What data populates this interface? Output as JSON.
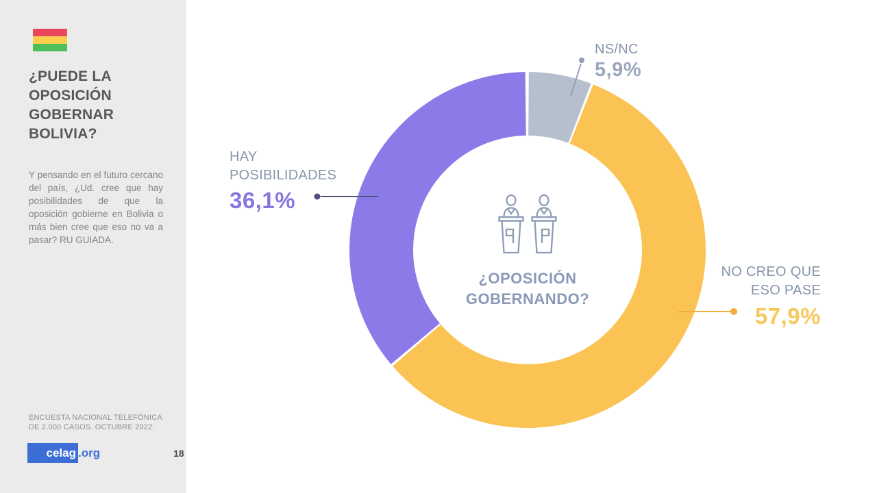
{
  "sidebar": {
    "flag": {
      "name": "bolivia-flag",
      "stripe_colors": [
        "#E8475C",
        "#FBCE4E",
        "#4FBF5C"
      ]
    },
    "title": "¿PUEDE LA OPOSICIÓN GOBERNAR BOLIVIA?",
    "description": "Y pensando en el futuro cercano del país, ¿Ud. cree que hay posibilidades de que la oposición gobierne en Bolivia o más bien cree que eso no va a pasar? RU GUIADA.",
    "source_note": "ENCUESTA NACIONAL TELEFÓNICA DE 2.000 CASOS. OCTUBRE 2022.",
    "logo": {
      "primary": "celag",
      "suffix": ".org",
      "brand_color": "#3C6ED5"
    },
    "page_number": "18"
  },
  "chart_data": {
    "type": "pie",
    "subtype": "donut",
    "center_label": "¿OPOSICIÓN GOBERNANDO?",
    "center_icon": "debate-podiums-icon",
    "start_angle_deg": 0,
    "direction": "clockwise",
    "segments": [
      {
        "id": "ns-nc",
        "label": "NS/NC",
        "value": 5.9,
        "display_value": "5,9%",
        "color": "#B6BFCD",
        "value_color": "#9AA7BC",
        "leader_color": "#93A0B5"
      },
      {
        "id": "no-creo-que-eso-pase",
        "label": "NO CREO QUE ESO PASE",
        "value": 57.9,
        "display_value": "57,9%",
        "color": "#FBC353",
        "value_color": "#F8C85D",
        "leader_color": "#F2AC3F"
      },
      {
        "id": "hay-posibilidades",
        "label": "HAY POSIBILIDADES",
        "value": 36.1,
        "display_value": "36,1%",
        "color": "#8A7BE8",
        "value_color": "#8478DE",
        "leader_color": "#50507E"
      }
    ]
  },
  "colors": {
    "sidebar_bg": "#EBEBEB",
    "category_label": "#8794A9",
    "center_text": "#8A99B6",
    "icon_stroke": "#8E9CB6"
  }
}
